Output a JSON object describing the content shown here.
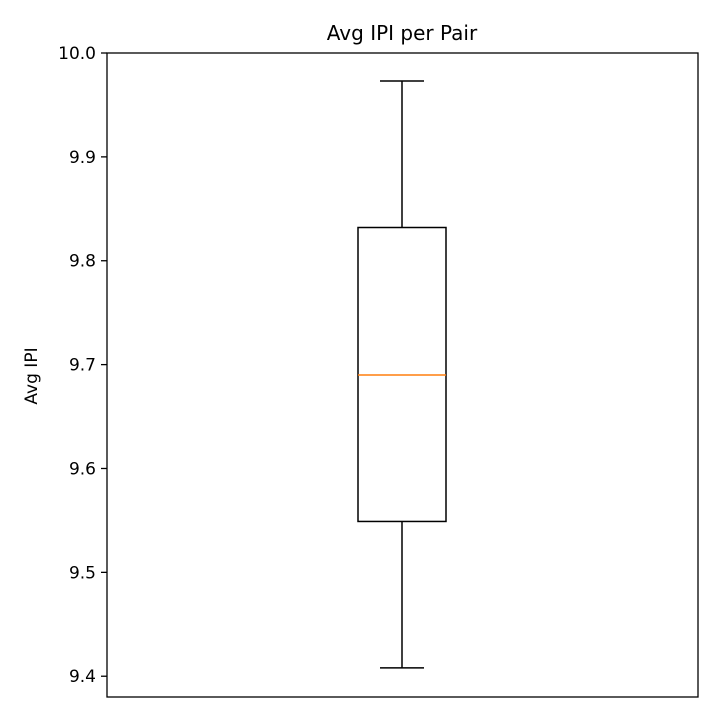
{
  "chart_data": {
    "type": "box",
    "title": "Avg IPI per Pair",
    "xlabel": "",
    "ylabel": "Avg IPI",
    "ylim": [
      9.38,
      10.0
    ],
    "yticks": [
      9.4,
      9.5,
      9.6,
      9.7,
      9.8,
      9.9,
      10.0
    ],
    "ytick_labels": [
      "9.4",
      "9.5",
      "9.6",
      "9.7",
      "9.8",
      "9.9",
      "10.0"
    ],
    "grid": false,
    "box": {
      "whisker_low": 9.408,
      "q1": 9.549,
      "median": 9.69,
      "q3": 9.832,
      "whisker_high": 9.973
    },
    "colors": {
      "box": "#000000",
      "median": "#ff7f0e",
      "axes": "#000000"
    }
  }
}
